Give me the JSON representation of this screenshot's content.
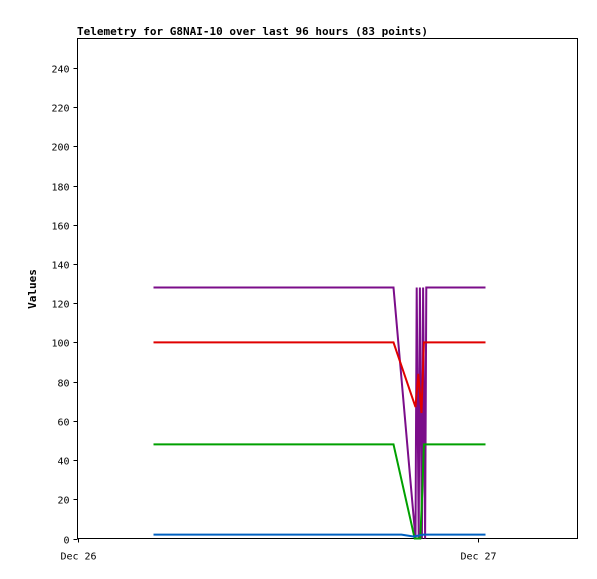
{
  "chart_data": {
    "type": "line",
    "title": "Telemetry for G8NAI-10 over last 96 hours (83 points)",
    "ylabel": "Values",
    "xlabel": "",
    "ylim": [
      0,
      255
    ],
    "yticks": [
      0,
      20,
      40,
      60,
      80,
      100,
      120,
      140,
      160,
      180,
      200,
      220,
      240
    ],
    "xlim": [
      0,
      1.25
    ],
    "xticks": [
      {
        "label": "Dec 26",
        "value": 0
      },
      {
        "label": "Dec 27",
        "value": 1
      }
    ],
    "grid": false,
    "legend": "none",
    "series": [
      {
        "color": "#7b0d8a",
        "points": [
          [
            0.19,
            128
          ],
          [
            0.79,
            128
          ],
          [
            0.845,
            0
          ],
          [
            0.848,
            128
          ],
          [
            0.853,
            0
          ],
          [
            0.856,
            128
          ],
          [
            0.861,
            0
          ],
          [
            0.864,
            128
          ],
          [
            0.869,
            0
          ],
          [
            0.872,
            128
          ],
          [
            1.02,
            128
          ]
        ]
      },
      {
        "color": "#e00000",
        "points": [
          [
            0.19,
            100
          ],
          [
            0.79,
            100
          ],
          [
            0.845,
            67
          ],
          [
            0.852,
            84
          ],
          [
            0.86,
            64
          ],
          [
            0.866,
            100
          ],
          [
            1.02,
            100
          ]
        ]
      },
      {
        "color": "#00a000",
        "points": [
          [
            0.19,
            48
          ],
          [
            0.79,
            48
          ],
          [
            0.843,
            0
          ],
          [
            0.857,
            0
          ],
          [
            0.862,
            24
          ],
          [
            0.866,
            48
          ],
          [
            1.02,
            48
          ]
        ]
      },
      {
        "color": "#0060c0",
        "points": [
          [
            0.19,
            2
          ],
          [
            0.81,
            2
          ],
          [
            0.84,
            1
          ],
          [
            0.865,
            2
          ],
          [
            1.02,
            2
          ]
        ]
      }
    ]
  }
}
